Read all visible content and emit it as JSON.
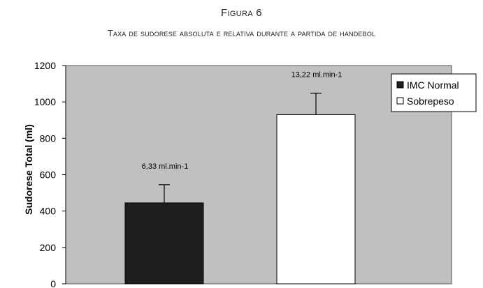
{
  "figure": {
    "title": "Figura 6",
    "subtitle": "Taxa de sudorese absoluta e relativa durante a partida de handebol"
  },
  "chart_data": {
    "type": "bar",
    "ylabel": "Sudorese Total (ml)",
    "xlabel": "",
    "ylim": [
      0,
      1200
    ],
    "yticks": [
      0,
      200,
      400,
      600,
      800,
      1000,
      1200
    ],
    "grid": false,
    "legend_position": "top-right",
    "plot_background": "#c0c0c0",
    "series": [
      {
        "name": "IMC Normal",
        "value": 445,
        "error": 100,
        "label": "6,33 ml.min-1",
        "color": "#1e1e1e"
      },
      {
        "name": "Sobrepeso",
        "value": 930,
        "error": 118,
        "label": "13,22 ml.min-1",
        "color": "#ffffff"
      }
    ]
  }
}
